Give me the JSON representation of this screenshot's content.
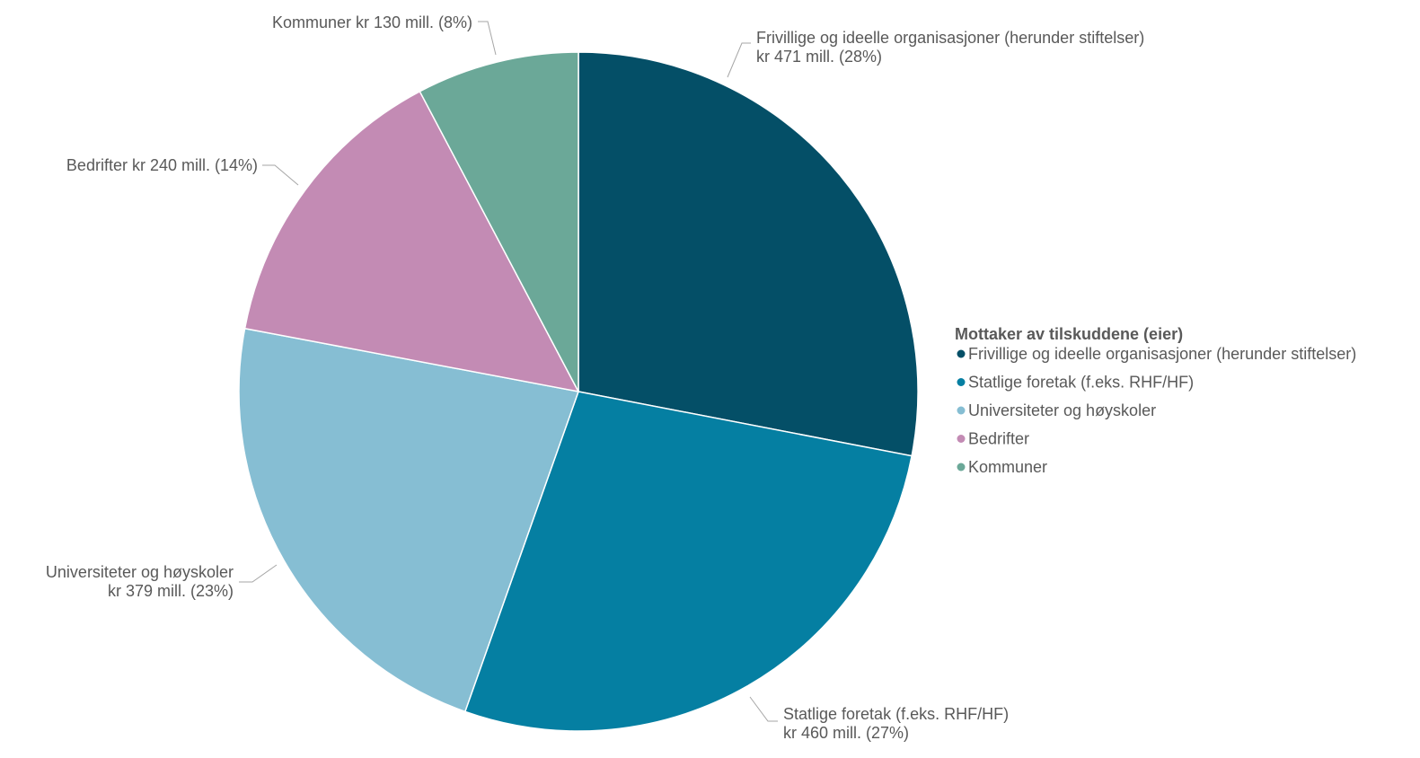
{
  "chart_data": {
    "type": "pie",
    "title": "",
    "legend_title": "Mottaker av tilskuddene (eier)",
    "legend_position": "right",
    "unit": "mill. kr",
    "slices": [
      {
        "name": "Frivillige og ideelle organisasjoner (herunder stiftelser)",
        "value": 471,
        "percent": 28,
        "color": "#044f67",
        "label_lines": [
          "Frivillige og ideelle organisasjoner (herunder stiftelser)",
          "kr 471 mill. (28%)"
        ]
      },
      {
        "name": "Statlige foretak (f.eks. RHF/HF)",
        "value": 460,
        "percent": 27,
        "color": "#057fa2",
        "label_lines": [
          "Statlige foretak (f.eks. RHF/HF)",
          "kr 460 mill. (27%)"
        ]
      },
      {
        "name": "Universiteter og høyskoler",
        "value": 379,
        "percent": 23,
        "color": "#86bed3",
        "label_lines": [
          "Universiteter og høyskoler",
          "kr 379 mill. (23%)"
        ]
      },
      {
        "name": "Bedrifter",
        "value": 240,
        "percent": 14,
        "color": "#c38bb4",
        "label_lines": [
          "Bedrifter kr 240 mill. (14%)"
        ]
      },
      {
        "name": "Kommuner",
        "value": 130,
        "percent": 8,
        "color": "#6ba898",
        "label_lines": [
          "Kommuner kr 130 mill. (8%)"
        ]
      }
    ]
  }
}
